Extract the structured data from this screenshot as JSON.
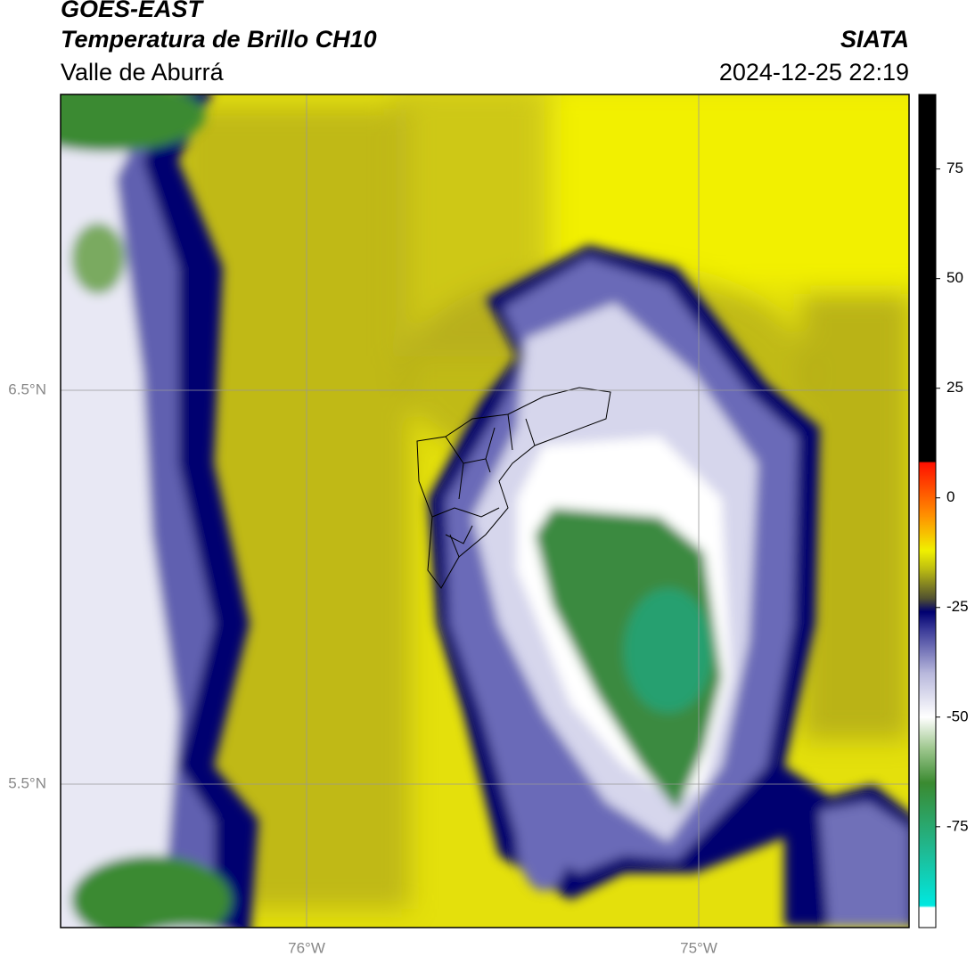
{
  "header": {
    "title": "GOES-EAST",
    "subtitle": "Temperatura de Brillo CH10",
    "region": "Valle de Aburrá",
    "source": "SIATA",
    "datetime": "2024-12-25 22:19"
  },
  "map": {
    "lat_labels": [
      "6.5°N",
      "5.5°N"
    ],
    "lon_labels": [
      "76°W",
      "75°W"
    ]
  },
  "colorbar": {
    "lim": [
      -98,
      92
    ],
    "ticks": [
      75,
      50,
      25,
      0,
      -25,
      -50,
      -75
    ],
    "colormap": [
      {
        "value": -98,
        "color": "#ffffff"
      },
      {
        "value": -93.5,
        "color": "#ffffff"
      },
      {
        "value": -93,
        "color": "#00e8e0"
      },
      {
        "value": -80,
        "color": "#20b890"
      },
      {
        "value": -65,
        "color": "#3a8a30"
      },
      {
        "value": -57,
        "color": "#a0c890"
      },
      {
        "value": -50,
        "color": "#ffffff"
      },
      {
        "value": -40,
        "color": "#b8b8dc"
      },
      {
        "value": -30,
        "color": "#3a3a98"
      },
      {
        "value": -26,
        "color": "#000070"
      },
      {
        "value": -23,
        "color": "#505030"
      },
      {
        "value": -16,
        "color": "#c0c010"
      },
      {
        "value": -12,
        "color": "#f0f000"
      },
      {
        "value": -4,
        "color": "#ff9000"
      },
      {
        "value": 8,
        "color": "#ff1000"
      },
      {
        "value": 8.3,
        "color": "#000000"
      },
      {
        "value": 92,
        "color": "#000000"
      }
    ]
  }
}
